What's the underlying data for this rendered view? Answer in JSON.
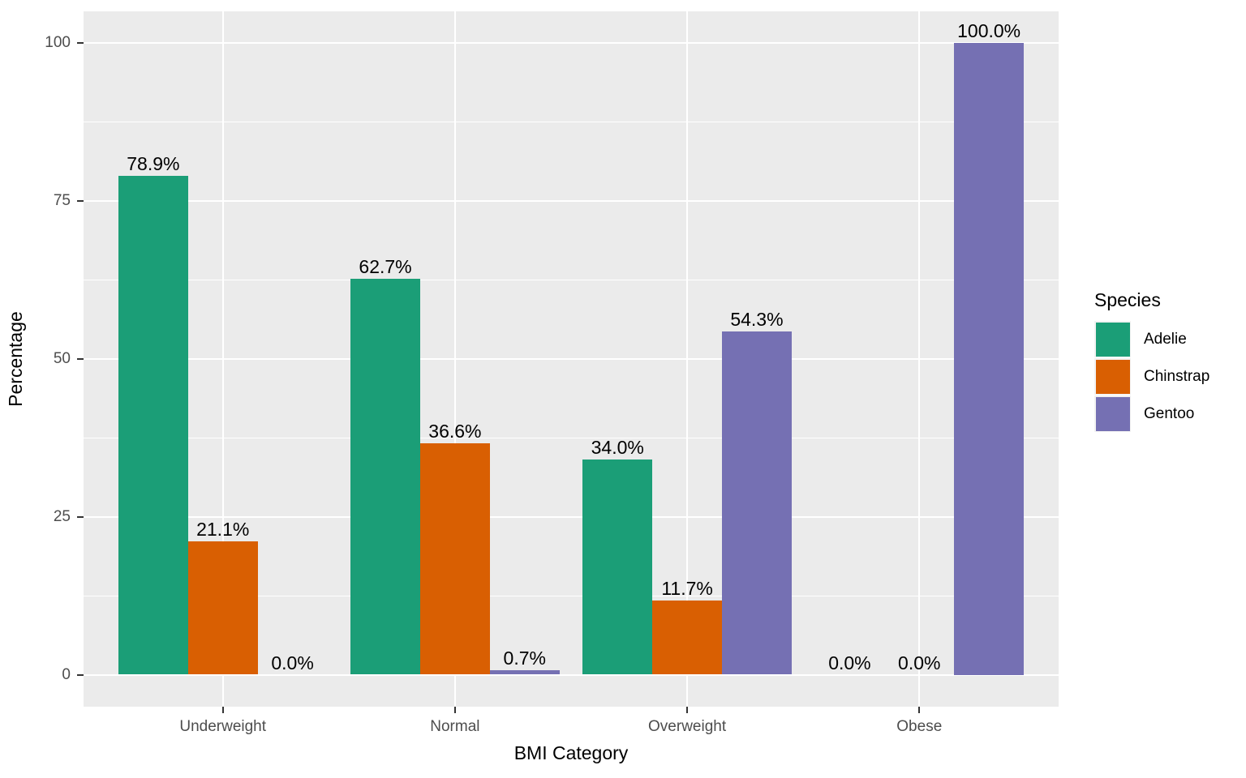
{
  "chart_data": {
    "type": "bar",
    "title": "",
    "xlabel": "BMI Category",
    "ylabel": "Percentage",
    "categories": [
      "Underweight",
      "Normal",
      "Overweight",
      "Obese"
    ],
    "series": [
      {
        "name": "Adelie",
        "color": "#1B9E77",
        "values": [
          78.9,
          62.7,
          34.0,
          0.0
        ],
        "labels": [
          "78.9%",
          "62.7%",
          "34.0%",
          "0.0%"
        ]
      },
      {
        "name": "Chinstrap",
        "color": "#D95F02",
        "values": [
          21.1,
          36.6,
          11.7,
          0.0
        ],
        "labels": [
          "21.1%",
          "36.6%",
          "11.7%",
          "0.0%"
        ]
      },
      {
        "name": "Gentoo",
        "color": "#7570B3",
        "values": [
          0.0,
          0.7,
          54.3,
          100.0
        ],
        "labels": [
          "0.0%",
          "0.7%",
          "54.3%",
          "100.0%"
        ]
      }
    ],
    "legend_title": "Species",
    "legend_position": "right",
    "ylim": [
      0,
      100
    ],
    "y_ticks": [
      0,
      25,
      50,
      75,
      100
    ],
    "y_tick_labels": [
      "0",
      "25",
      "50",
      "75",
      "100"
    ],
    "y_minor_ticks": [
      12.5,
      37.5,
      62.5,
      87.5
    ],
    "grid": "white major and minor horizontal lines, white vertical lines at category centers, on gray panel"
  },
  "colors": {
    "page_bg": "#FFFFFF",
    "panel_bg": "#EBEBEB",
    "gridline": "#FFFFFF",
    "tick_label": "#4D4D4D",
    "tick_mark": "#333333",
    "axis_title": "#000000",
    "bar_label": "#000000",
    "legend_key_bg": "#F2F2F2"
  }
}
